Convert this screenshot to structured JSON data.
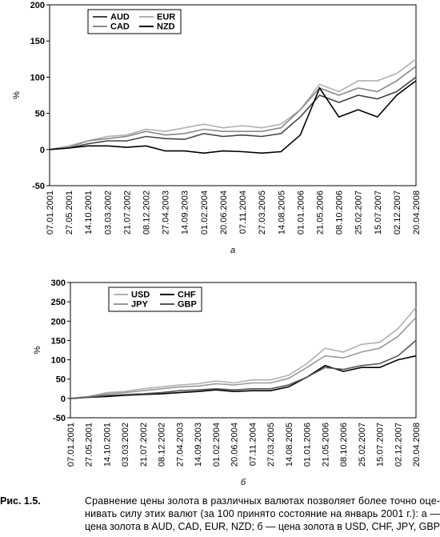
{
  "chart_data": [
    {
      "type": "line",
      "ylabel": "%",
      "legend": "upper left",
      "categories": [
        "07.01.2001",
        "27.05.2001",
        "14.10.2001",
        "03.03.2002",
        "21.07.2002",
        "08.12.2002",
        "27.04.2003",
        "14.09.2003",
        "01.02.2004",
        "20.06.2004",
        "07.11.2004",
        "27.03.2005",
        "14.08.2005",
        "01.01.2006",
        "21.05.2006",
        "08.10.2006",
        "25.02.2007",
        "15.07.2007",
        "02.12.2007",
        "20.04.2008"
      ],
      "series": [
        {
          "name": "AUD",
          "color": "#444444",
          "values": [
            0,
            2,
            8,
            12,
            12,
            18,
            15,
            14,
            22,
            18,
            20,
            18,
            22,
            45,
            75,
            65,
            75,
            70,
            80,
            100
          ]
        },
        {
          "name": "EUR",
          "color": "#b0b0b0",
          "values": [
            0,
            5,
            12,
            18,
            20,
            28,
            25,
            30,
            35,
            30,
            33,
            30,
            35,
            55,
            90,
            80,
            95,
            95,
            105,
            125
          ]
        },
        {
          "name": "CAD",
          "color": "#888888",
          "values": [
            0,
            3,
            12,
            15,
            18,
            25,
            20,
            22,
            28,
            25,
            25,
            25,
            30,
            55,
            85,
            75,
            85,
            80,
            95,
            115
          ]
        },
        {
          "name": "NZD",
          "color": "#000000",
          "values": [
            0,
            2,
            5,
            5,
            3,
            5,
            -2,
            -2,
            -5,
            -2,
            -3,
            -5,
            -3,
            20,
            85,
            45,
            55,
            45,
            75,
            95
          ]
        }
      ],
      "ylim": [
        -50,
        200
      ],
      "yticks": [
        -50,
        0,
        50,
        100,
        150,
        200
      ],
      "sublabel": "а"
    },
    {
      "type": "line",
      "ylabel": "%",
      "legend": "upper left",
      "categories": [
        "07.01.2001",
        "27.05.2001",
        "14.10.2001",
        "03.03.2002",
        "21.07.2002",
        "08.12.2002",
        "27.04.2003",
        "14.09.2003",
        "01.02.2004",
        "20.06.2004",
        "07.11.2004",
        "27.03.2005",
        "14.08.2005",
        "01.01.2006",
        "21.05.2006",
        "08.10.2006",
        "25.02.2007",
        "15.07.2007",
        "02.12.2007",
        "20.04.2008"
      ],
      "series": [
        {
          "name": "USD",
          "color": "#b0b0b0",
          "values": [
            0,
            5,
            15,
            18,
            25,
            30,
            35,
            38,
            45,
            40,
            48,
            48,
            60,
            90,
            130,
            120,
            140,
            145,
            180,
            235
          ]
        },
        {
          "name": "CHF",
          "color": "#000000",
          "values": [
            0,
            3,
            5,
            8,
            10,
            12,
            15,
            18,
            22,
            18,
            20,
            20,
            30,
            55,
            85,
            70,
            80,
            80,
            100,
            110
          ]
        },
        {
          "name": "JPY",
          "color": "#999999",
          "values": [
            0,
            5,
            12,
            15,
            20,
            25,
            30,
            32,
            38,
            35,
            40,
            40,
            52,
            80,
            110,
            105,
            120,
            130,
            160,
            210
          ]
        },
        {
          "name": "GBP",
          "color": "#555555",
          "values": [
            0,
            3,
            8,
            10,
            12,
            15,
            20,
            22,
            25,
            22,
            25,
            25,
            35,
            55,
            80,
            75,
            85,
            90,
            110,
            150
          ]
        }
      ],
      "ylim": [
        -50,
        300
      ],
      "yticks": [
        -50,
        0,
        50,
        100,
        150,
        200,
        250,
        300
      ],
      "sublabel": "б"
    }
  ],
  "caption": {
    "label": "Рис. 1.5.",
    "lines": [
      "Сравнение цены золота в различных валютах позволяет более точно оце-",
      "нивать силу этих валют (за 100 принято состояние на январь 2001 г.): а —",
      "цена золота в AUD, CAD, EUR, NZD; б — цена золота в USD, CHF, JPY, GBP"
    ]
  }
}
